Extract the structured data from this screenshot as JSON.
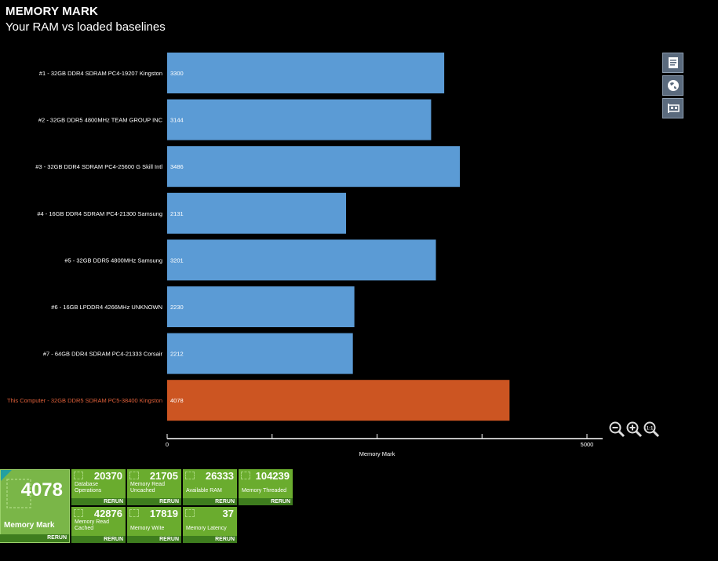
{
  "header": {
    "title": "MEMORY MARK",
    "subtitle": "Your RAM vs loaded baselines"
  },
  "chart_data": {
    "type": "bar",
    "orientation": "horizontal",
    "categories": [
      "#1 - 32GB DDR4 SDRAM PC4-19207 Kingston",
      "#2 - 32GB DDR5 4800MHz TEAM GROUP INC",
      "#3 - 32GB DDR4 SDRAM PC4-25600 G Skill Intl",
      "#4 - 16GB DDR4 SDRAM PC4-21300 Samsung",
      "#5 - 32GB DDR5 4800MHz Samsung",
      "#6 - 16GB LPDDR4 4266MHz UNKNOWN",
      "#7 - 64GB DDR4 SDRAM PC4-21333 Corsair",
      "This Computer - 32GB DDR5 SDRAM PC5-38400 Kingston"
    ],
    "values": [
      3300,
      3144,
      3486,
      2131,
      3201,
      2230,
      2212,
      4078
    ],
    "highlight_index": 7,
    "xlabel": "Memory Mark",
    "xlim": [
      0,
      5000
    ],
    "x_ticks": [
      0,
      5000
    ],
    "colors": {
      "bar": "#5b9bd5",
      "highlight": "#cc5522",
      "highlight_text": "#e0603a"
    }
  },
  "side_buttons": [
    {
      "icon": "document-icon"
    },
    {
      "icon": "globe-icon"
    },
    {
      "icon": "hardware-icon"
    }
  ],
  "zoom_controls": [
    {
      "icon": "zoom-out-icon"
    },
    {
      "icon": "zoom-in-icon"
    },
    {
      "icon": "zoom-reset-icon",
      "text": "1:1"
    }
  ],
  "main_tile": {
    "value": "4078",
    "label": "Memory Mark",
    "rerun": "RERUN"
  },
  "tiles": [
    {
      "value": "20370",
      "label": "Database Operations",
      "rerun": "RERUN"
    },
    {
      "value": "21705",
      "label": "Memory Read Uncached",
      "rerun": "RERUN"
    },
    {
      "value": "26333",
      "label": "Available RAM",
      "rerun": "RERUN"
    },
    {
      "value": "104239",
      "label": "Memory Threaded",
      "rerun": "RERUN"
    },
    {
      "value": "42876",
      "label": "Memory Read Cached",
      "rerun": "RERUN"
    },
    {
      "value": "17819",
      "label": "Memory Write",
      "rerun": "RERUN"
    },
    {
      "value": "37",
      "label": "Memory Latency",
      "rerun": "RERUN"
    }
  ]
}
